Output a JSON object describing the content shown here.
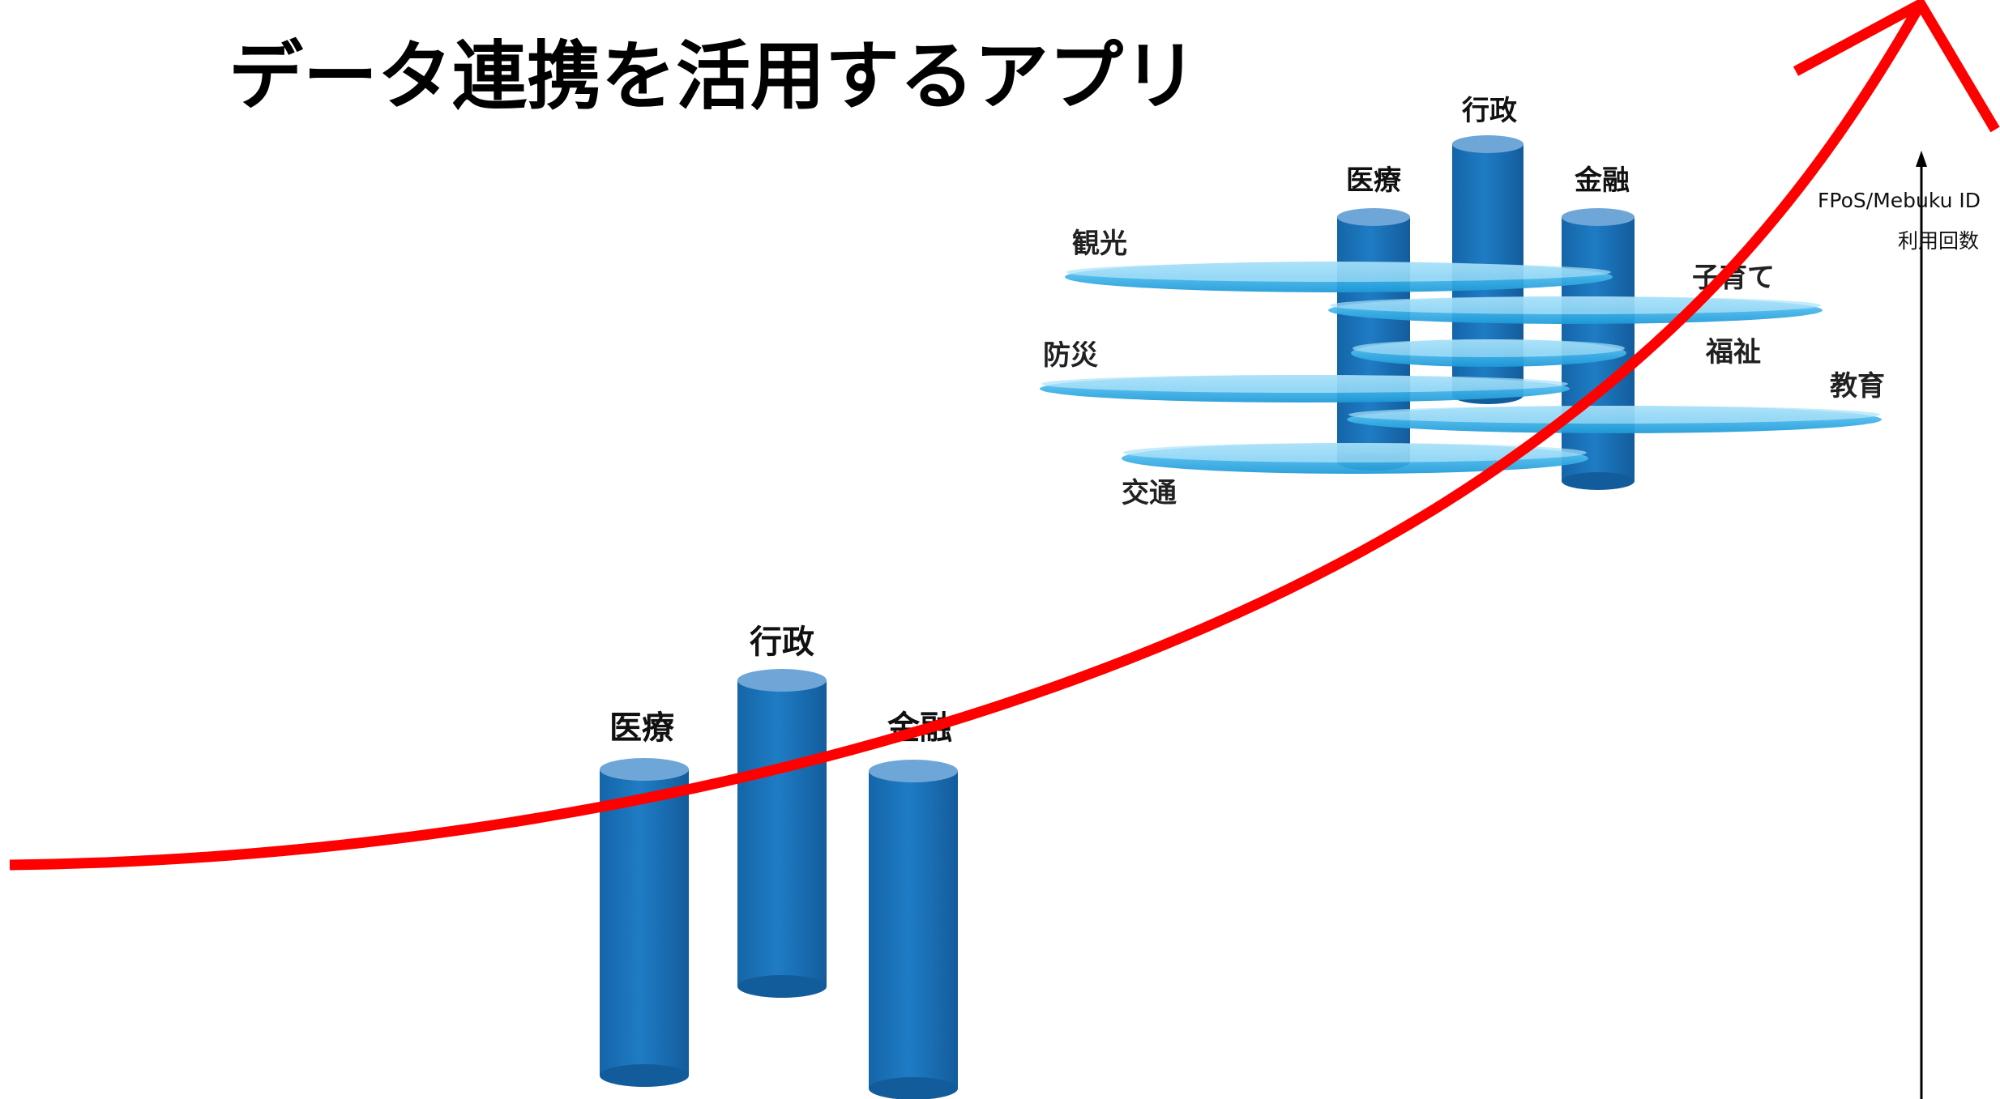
{
  "title": "データ連携を活用するアプリ",
  "axis": {
    "label_line1": "FPoS/Mebuku ID",
    "label_line2": "利用回数"
  },
  "colors": {
    "curve": "#ff0000",
    "cylinder": "#1b75bc",
    "cylinder_top": "#6fa6d8",
    "disc": "#29abe2",
    "disc_top": "#8dd8f8",
    "axis": "#000000"
  },
  "lower_cluster": {
    "pillars": [
      {
        "key": "medical",
        "label": "医療"
      },
      {
        "key": "admin",
        "label": "行政"
      },
      {
        "key": "finance",
        "label": "金融"
      }
    ]
  },
  "upper_cluster": {
    "pillars": [
      {
        "key": "medical",
        "label": "医療"
      },
      {
        "key": "admin",
        "label": "行政"
      },
      {
        "key": "finance",
        "label": "金融"
      }
    ],
    "discs": [
      {
        "key": "tourism",
        "label": "観光"
      },
      {
        "key": "childcare",
        "label": "子育て"
      },
      {
        "key": "welfare",
        "label": "福祉"
      },
      {
        "key": "disaster",
        "label": "防災"
      },
      {
        "key": "education",
        "label": "教育"
      },
      {
        "key": "transport",
        "label": "交通"
      }
    ]
  }
}
